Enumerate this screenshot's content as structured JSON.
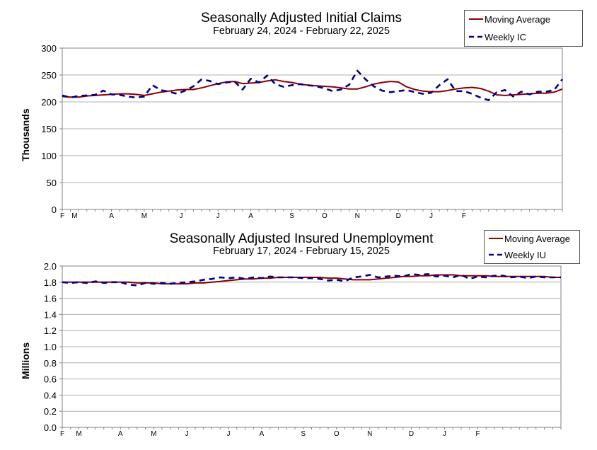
{
  "chart_data": [
    {
      "type": "line",
      "title": "Seasonally Adjusted Initial Claims",
      "subtitle": "February 24, 2024 - February 22, 2025",
      "ylabel": "Thousands",
      "xlabel": "",
      "ylim": [
        0,
        300
      ],
      "yticks": [
        "0",
        "50",
        "100",
        "150",
        "200",
        "250",
        "300"
      ],
      "xtick_labels": [
        "F",
        "M",
        "A",
        "M",
        "J",
        "J",
        "A",
        "S",
        "O",
        "N",
        "D",
        "J",
        "F"
      ],
      "xtick_weeks": [
        0,
        1.5,
        6,
        10,
        14.5,
        19,
        23,
        28,
        32,
        36,
        41,
        45,
        49
      ],
      "grid": "horizontal",
      "legend_placement": "top-right",
      "series": [
        {
          "name": "Moving Average",
          "color": "#8B0000",
          "style": "solid",
          "values": [
            210,
            209,
            209,
            211,
            212,
            213,
            214,
            215,
            215,
            214,
            212,
            215,
            218,
            220,
            222,
            223,
            223,
            226,
            230,
            234,
            237,
            238,
            234,
            235,
            236,
            239,
            241,
            238,
            236,
            233,
            231,
            230,
            229,
            228,
            226,
            224,
            224,
            228,
            233,
            236,
            238,
            237,
            228,
            223,
            220,
            219,
            219,
            221,
            224,
            226,
            227,
            225,
            220,
            213,
            212,
            213,
            214,
            215,
            216,
            216,
            218,
            224
          ]
        },
        {
          "name": "Weekly IC",
          "color": "#00008B",
          "style": "dashed",
          "values": [
            212,
            208,
            211,
            212,
            213,
            221,
            214,
            213,
            210,
            208,
            210,
            231,
            222,
            219,
            215,
            221,
            229,
            242,
            239,
            233,
            236,
            238,
            223,
            243,
            236,
            249,
            233,
            228,
            231,
            233,
            231,
            229,
            225,
            220,
            223,
            232,
            258,
            242,
            229,
            221,
            218,
            220,
            222,
            218,
            215,
            217,
            231,
            242,
            220,
            220,
            215,
            208,
            203,
            218,
            222,
            210,
            219,
            214,
            219,
            219,
            222,
            242
          ]
        }
      ]
    },
    {
      "type": "line",
      "title": "Seasonally Adjusted Insured Unemployment",
      "subtitle": "February 17, 2024 - February 15, 2025",
      "ylabel": "Millions",
      "xlabel": "",
      "ylim": [
        0,
        2.0
      ],
      "yticks": [
        "0.0",
        "0.2",
        "0.4",
        "0.6",
        "0.8",
        "1.0",
        "1.2",
        "1.4",
        "1.6",
        "1.8",
        "2.0"
      ],
      "xtick_labels": [
        "F",
        "M",
        "A",
        "M",
        "J",
        "J",
        "A",
        "S",
        "O",
        "N",
        "D",
        "J",
        "F"
      ],
      "xtick_weeks": [
        0,
        2,
        7,
        11,
        15,
        20,
        24,
        29,
        33,
        37,
        42,
        46,
        50
      ],
      "grid": "horizontal",
      "legend_placement": "top-right",
      "series": [
        {
          "name": "Moving Average",
          "color": "#8B0000",
          "style": "solid",
          "values": [
            1.8,
            1.8,
            1.8,
            1.8,
            1.8,
            1.8,
            1.8,
            1.8,
            1.8,
            1.79,
            1.79,
            1.79,
            1.78,
            1.78,
            1.78,
            1.78,
            1.79,
            1.79,
            1.8,
            1.81,
            1.82,
            1.83,
            1.84,
            1.84,
            1.85,
            1.85,
            1.86,
            1.86,
            1.86,
            1.86,
            1.86,
            1.86,
            1.85,
            1.85,
            1.84,
            1.83,
            1.83,
            1.83,
            1.84,
            1.85,
            1.86,
            1.87,
            1.87,
            1.88,
            1.88,
            1.89,
            1.89,
            1.89,
            1.88,
            1.88,
            1.88,
            1.88,
            1.87,
            1.87,
            1.87,
            1.87,
            1.87,
            1.87,
            1.87,
            1.86,
            1.86
          ]
        },
        {
          "name": "Weekly IU",
          "color": "#00008B",
          "style": "dashed",
          "values": [
            1.8,
            1.79,
            1.8,
            1.79,
            1.81,
            1.79,
            1.8,
            1.8,
            1.77,
            1.76,
            1.79,
            1.78,
            1.79,
            1.78,
            1.79,
            1.8,
            1.81,
            1.83,
            1.84,
            1.86,
            1.85,
            1.86,
            1.84,
            1.86,
            1.85,
            1.87,
            1.86,
            1.86,
            1.86,
            1.85,
            1.85,
            1.84,
            1.82,
            1.83,
            1.81,
            1.86,
            1.87,
            1.89,
            1.86,
            1.87,
            1.88,
            1.87,
            1.9,
            1.89,
            1.9,
            1.87,
            1.88,
            1.86,
            1.89,
            1.84,
            1.87,
            1.86,
            1.88,
            1.88,
            1.86,
            1.87,
            1.85,
            1.87,
            1.86,
            1.86,
            1.86
          ]
        }
      ]
    }
  ]
}
